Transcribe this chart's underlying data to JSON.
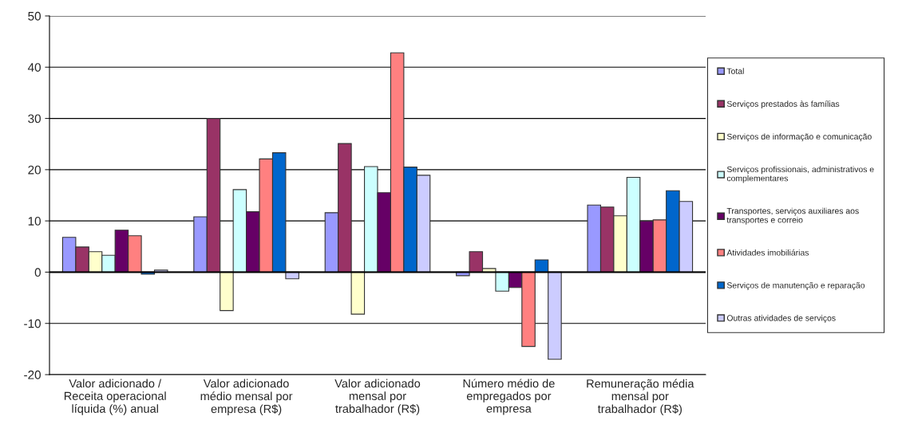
{
  "chart_data": {
    "type": "bar",
    "categories": [
      "Valor adicionado / Receita operacional líquida (%) anual",
      "Valor adicionado médio mensal por empresa (R$)",
      "Valor adicionado mensal por trabalhador (R$)",
      "Número médio de empregados por empresa",
      "Remuneração média mensal por trabalhador (R$)"
    ],
    "series": [
      {
        "name": "Total",
        "color": "#9999ff",
        "values": [
          6.8,
          10.8,
          11.6,
          -0.7,
          13.1
        ]
      },
      {
        "name": "Serviços prestados às famílias",
        "color": "#993366",
        "values": [
          4.9,
          30.0,
          25.1,
          4.0,
          12.7
        ]
      },
      {
        "name": "Serviços de informação e comunicação",
        "color": "#ffffcc",
        "values": [
          4.0,
          -7.5,
          -8.2,
          0.7,
          11.0
        ]
      },
      {
        "name": "Serviços profissionais, administrativos e complementares",
        "color": "#ccffff",
        "values": [
          3.3,
          16.1,
          20.6,
          -3.7,
          18.5
        ]
      },
      {
        "name": "Transportes, serviços auxiliares aos transportes e correio",
        "color": "#660066",
        "values": [
          8.2,
          11.8,
          15.5,
          -3.0,
          10.0
        ]
      },
      {
        "name": "Atividades imobiliárias",
        "color": "#ff8080",
        "values": [
          7.1,
          22.1,
          42.8,
          -14.5,
          10.2
        ]
      },
      {
        "name": "Serviços de manutenção e reparação",
        "color": "#0066cc",
        "values": [
          -0.4,
          23.3,
          20.5,
          2.4,
          15.9
        ]
      },
      {
        "name": "Outras atividades de serviços",
        "color": "#ccccff",
        "values": [
          0.4,
          -1.3,
          18.9,
          -17.0,
          13.8
        ]
      }
    ],
    "ylim": [
      -20,
      50
    ],
    "yticks": [
      -20,
      -10,
      0,
      10,
      20,
      30,
      40,
      50
    ],
    "grid": "y",
    "legend": "right"
  }
}
